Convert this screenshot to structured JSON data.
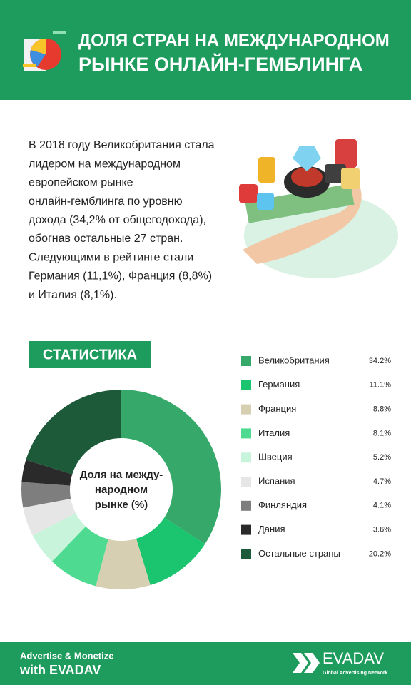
{
  "header": {
    "title": [
      "ДОЛЯ СТРАН НА МЕЖДУНАРОДНОМ",
      "РЫНКЕ ОНЛАЙН-ГЕМБЛИНГА"
    ]
  },
  "intro": [
    "В 2018 году Великобритания стала",
    "лидером на международном",
    "европейском рынке",
    "онлайн-гемблинга по уровню",
    "дохода (34,2% от общегодохода),",
    "обогнав остальные 27 стран.",
    "Следующими в рейтинге стали",
    "Германия (11,1%), Франция (8,8%)",
    "и Италия (8,1%)."
  ],
  "chart_data": {
    "type": "donut",
    "title": "СТАТИСТИКА",
    "center_label": [
      "Доля на между-",
      "народном",
      "рынке (%)"
    ],
    "categories": [
      "Великобритания",
      "Германия",
      "Франция",
      "Италия",
      "Швеция",
      "Испания",
      "Финляндия",
      "Дания",
      "Остальные страны"
    ],
    "values": [
      34.2,
      11.1,
      8.8,
      8.1,
      5.2,
      4.7,
      4.1,
      3.6,
      20.2
    ],
    "value_labels": [
      "34.2%",
      "11.1%",
      "8.8%",
      "8.1%",
      "5.2%",
      "4.7%",
      "4.1%",
      "3.6%",
      "20.2%"
    ],
    "colors": [
      "#35a86a",
      "#1bc46e",
      "#d7cfb2",
      "#4edb91",
      "#c9f4dc",
      "#e6e6e6",
      "#7e7e7e",
      "#2a2a2a",
      "#1d5a3a"
    ]
  },
  "footer": {
    "tagline": [
      "Advertise & Monetize",
      "with EVADAV"
    ],
    "brand": "EVADAV",
    "brand_sub": "Global Advertising Network"
  }
}
